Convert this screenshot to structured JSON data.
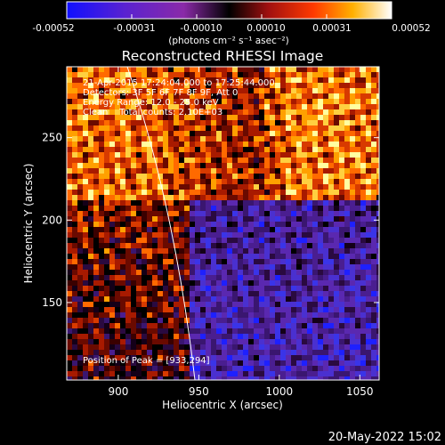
{
  "colorbar": {
    "tick_labels": [
      "-0.00052",
      "-0.00031",
      "-0.00010",
      "0.00010",
      "0.00031",
      "0.00052"
    ],
    "unit_label": "(photons cm⁻² s⁻¹ asec⁻²)"
  },
  "chart_data": {
    "type": "heatmap",
    "title": "Reconstructed RHESSI Image",
    "xlabel": "Heliocentric X (arcsec)",
    "ylabel": "Heliocentric Y (arcsec)",
    "xlim": [
      868,
      1062
    ],
    "ylim": [
      103,
      293
    ],
    "x_ticks": [
      900,
      950,
      1000,
      1050
    ],
    "y_ticks": [
      150,
      200,
      250
    ],
    "clim": [
      -0.00052,
      0.00052
    ],
    "annotations": {
      "time": "21-Apr-2015 17:24:04.000 to 17:25:44.000",
      "detectors": "Detectors: 3F 5F 6F 7F 8F 9F, Att 0",
      "energy": "Energy Range: 12.0 - 25.0 keV",
      "method": "Clean    Total counts: 2.10E+03",
      "peak": "Position of Peak = [933,294]"
    }
  },
  "footer": {
    "timestamp": "20-May-2022 15:02"
  }
}
